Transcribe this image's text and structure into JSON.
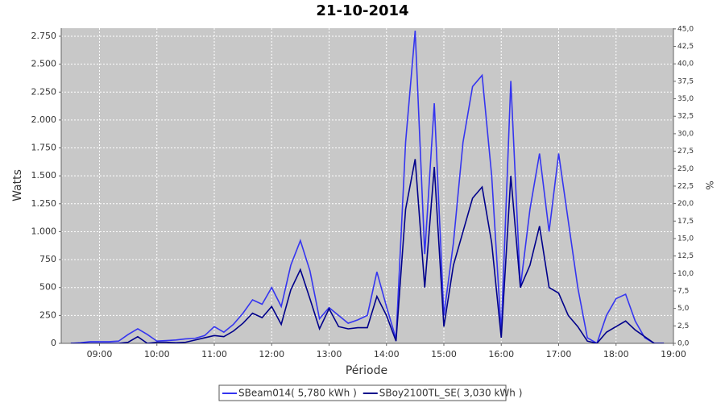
{
  "chart_data": {
    "type": "line",
    "title": "21-10-2014",
    "x_label": "Période",
    "y_label": "Watts",
    "y2_label": "%",
    "x": [
      "08:30",
      "08:40",
      "08:50",
      "09:00",
      "09:10",
      "09:20",
      "09:30",
      "09:40",
      "09:50",
      "10:00",
      "10:10",
      "10:20",
      "10:30",
      "10:40",
      "10:50",
      "11:00",
      "11:10",
      "11:20",
      "11:30",
      "11:40",
      "11:50",
      "12:00",
      "12:10",
      "12:20",
      "12:30",
      "12:40",
      "12:50",
      "13:00",
      "13:10",
      "13:20",
      "13:30",
      "13:40",
      "13:50",
      "14:00",
      "14:10",
      "14:20",
      "14:30",
      "14:40",
      "14:50",
      "15:00",
      "15:10",
      "15:20",
      "15:30",
      "15:40",
      "15:50",
      "16:00",
      "16:10",
      "16:20",
      "16:30",
      "16:40",
      "16:50",
      "17:00",
      "17:10",
      "17:20",
      "17:30",
      "17:40",
      "17:50",
      "18:00",
      "18:10",
      "18:20",
      "18:30",
      "18:40",
      "18:50"
    ],
    "series": [
      {
        "name": "SBeam014( 5,780 kWh )",
        "color": "#3535f0",
        "values": [
          0,
          5,
          15,
          15,
          15,
          20,
          80,
          130,
          80,
          20,
          25,
          30,
          40,
          45,
          70,
          150,
          100,
          170,
          270,
          390,
          350,
          500,
          330,
          700,
          920,
          650,
          220,
          320,
          250,
          180,
          210,
          250,
          640,
          330,
          40,
          1800,
          2800,
          800,
          2150,
          250,
          900,
          1800,
          2300,
          2400,
          1500,
          100,
          2350,
          500,
          1200,
          1700,
          1000,
          1700,
          1100,
          500,
          50,
          0,
          250,
          400,
          440,
          200,
          50,
          0,
          0
        ]
      },
      {
        "name": "SBoy2100TL_SE( 3,030 kWh )",
        "color": "#00008b",
        "values": [
          0,
          0,
          0,
          0,
          0,
          0,
          10,
          60,
          0,
          10,
          10,
          5,
          10,
          30,
          50,
          70,
          60,
          110,
          180,
          270,
          230,
          330,
          170,
          480,
          660,
          400,
          130,
          310,
          150,
          130,
          140,
          140,
          420,
          250,
          20,
          1200,
          1650,
          500,
          1580,
          150,
          700,
          1000,
          1300,
          1400,
          900,
          50,
          1500,
          500,
          700,
          1050,
          500,
          450,
          250,
          150,
          20,
          0,
          100,
          150,
          200,
          120,
          60,
          0,
          0
        ]
      }
    ],
    "xlim": [
      "08:20",
      "19:00"
    ],
    "xticks": [
      "09:00",
      "10:00",
      "11:00",
      "12:00",
      "13:00",
      "14:00",
      "15:00",
      "16:00",
      "17:00",
      "18:00",
      "19:00"
    ],
    "ylim": [
      0,
      2822
    ],
    "yticks": [
      0,
      250,
      500,
      750,
      {
        "value": 1000,
        "label": "1.000"
      },
      {
        "value": 1250,
        "label": "1.250"
      },
      {
        "value": 1500,
        "label": "1.500"
      },
      {
        "value": 1750,
        "label": "1.750"
      },
      {
        "value": 2000,
        "label": "2.000"
      },
      {
        "value": 2250,
        "label": "2.250"
      },
      {
        "value": 2500,
        "label": "2.500"
      },
      {
        "value": 2750,
        "label": "2.750"
      }
    ],
    "y2lim": [
      0,
      45.1
    ],
    "y2ticks": [
      {
        "value": 0,
        "label": "0,0"
      },
      {
        "value": 2.5,
        "label": "2,5"
      },
      {
        "value": 5,
        "label": "5,0"
      },
      {
        "value": 7.5,
        "label": "7,5"
      },
      {
        "value": 10,
        "label": "10,0"
      },
      {
        "value": 12.5,
        "label": "12,5"
      },
      {
        "value": 15,
        "label": "15,0"
      },
      {
        "value": 17.5,
        "label": "17,5"
      },
      {
        "value": 20,
        "label": "20,0"
      },
      {
        "value": 22.5,
        "label": "22,5"
      },
      {
        "value": 25,
        "label": "25,0"
      },
      {
        "value": 27.5,
        "label": "27,5"
      },
      {
        "value": 30,
        "label": "30,0"
      },
      {
        "value": 32.5,
        "label": "32,5"
      },
      {
        "value": 35,
        "label": "35,0"
      },
      {
        "value": 37.5,
        "label": "37,5"
      },
      {
        "value": 40,
        "label": "40,0"
      },
      {
        "value": 42.5,
        "label": "42,5"
      },
      {
        "value": 45,
        "label": "45,0"
      }
    ],
    "grid": true
  }
}
